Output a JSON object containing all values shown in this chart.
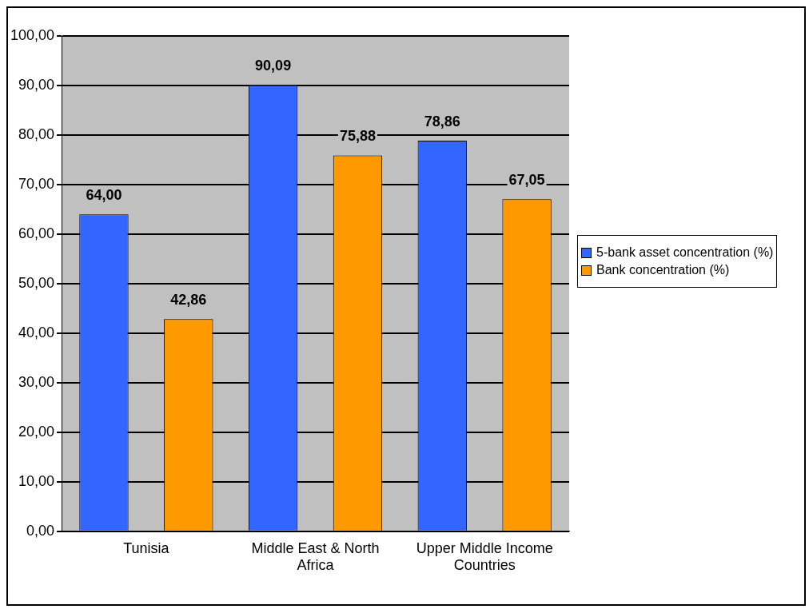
{
  "chart_data": {
    "type": "bar",
    "categories": [
      "Tunisia",
      "Middle East & North Africa",
      "Upper Middle Income Countries"
    ],
    "series": [
      {
        "name": "5-bank asset concentration (%)",
        "color": "#3366ff",
        "values": [
          64.0,
          90.09,
          78.86
        ],
        "value_labels": [
          "64,00",
          "90,09",
          "78,86"
        ]
      },
      {
        "name": "Bank concentration (%)",
        "color": "#ff9900",
        "values": [
          42.86,
          75.88,
          67.05
        ],
        "value_labels": [
          "42,86",
          "75,88",
          "67,05"
        ]
      }
    ],
    "ylim": [
      0,
      100
    ],
    "yticks": [
      {
        "value": 0,
        "label": "0,00"
      },
      {
        "value": 10,
        "label": "10,00"
      },
      {
        "value": 20,
        "label": "20,00"
      },
      {
        "value": 30,
        "label": "30,00"
      },
      {
        "value": 40,
        "label": "40,00"
      },
      {
        "value": 50,
        "label": "50,00"
      },
      {
        "value": 60,
        "label": "60,00"
      },
      {
        "value": 70,
        "label": "70,00"
      },
      {
        "value": 80,
        "label": "80,00"
      },
      {
        "value": 90,
        "label": "90,00"
      },
      {
        "value": 100,
        "label": "100,00"
      }
    ],
    "grid": "y",
    "legend": "right"
  }
}
